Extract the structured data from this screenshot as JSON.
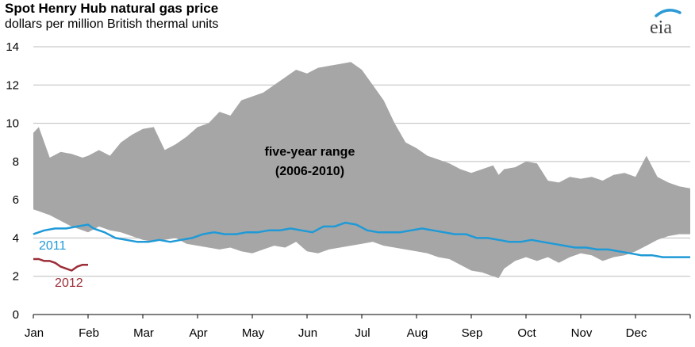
{
  "header": {
    "title": "Spot Henry Hub natural gas price",
    "subtitle": "dollars per million British thermal units",
    "logo_text": "eia"
  },
  "colors": {
    "band": "#a6a6a6",
    "s2011": "#1f9ad7",
    "s2012": "#9b2d37",
    "grid": "#bdbdbd",
    "logo_arc": "#2e9bd6"
  },
  "chart_data": {
    "type": "area",
    "ylim": [
      0,
      14
    ],
    "yticks": [
      0,
      2,
      4,
      6,
      8,
      10,
      12,
      14
    ],
    "grid": true,
    "xlim": [
      0,
      12
    ],
    "months": [
      "Jan",
      "Feb",
      "Mar",
      "Apr",
      "May",
      "Jun",
      "Jul",
      "Aug",
      "Sep",
      "Oct",
      "Nov",
      "Dec"
    ],
    "band_annotation": [
      "five-year range",
      "(2006-2010)"
    ],
    "range_band": {
      "x": [
        0.0,
        0.1,
        0.3,
        0.5,
        0.7,
        0.9,
        1.0,
        1.2,
        1.4,
        1.6,
        1.8,
        2.0,
        2.2,
        2.4,
        2.6,
        2.8,
        3.0,
        3.2,
        3.4,
        3.6,
        3.8,
        4.0,
        4.2,
        4.4,
        4.6,
        4.8,
        5.0,
        5.2,
        5.4,
        5.6,
        5.8,
        6.0,
        6.2,
        6.4,
        6.6,
        6.8,
        7.0,
        7.2,
        7.4,
        7.6,
        7.8,
        8.0,
        8.2,
        8.4,
        8.5,
        8.6,
        8.8,
        9.0,
        9.2,
        9.4,
        9.6,
        9.8,
        10.0,
        10.2,
        10.4,
        10.6,
        10.8,
        11.0,
        11.2,
        11.4,
        11.6,
        11.8,
        12.0
      ],
      "high": [
        9.5,
        9.8,
        8.2,
        8.5,
        8.4,
        8.2,
        8.3,
        8.6,
        8.3,
        9.0,
        9.4,
        9.7,
        9.8,
        8.6,
        8.9,
        9.3,
        9.8,
        10.0,
        10.6,
        10.4,
        11.2,
        11.4,
        11.6,
        12.0,
        12.4,
        12.8,
        12.6,
        12.9,
        13.0,
        13.1,
        13.2,
        12.8,
        12.0,
        11.2,
        10.0,
        9.0,
        8.7,
        8.3,
        8.1,
        7.9,
        7.6,
        7.4,
        7.6,
        7.8,
        7.3,
        7.6,
        7.7,
        8.0,
        7.9,
        7.0,
        6.9,
        7.2,
        7.1,
        7.2,
        7.0,
        7.3,
        7.4,
        7.2,
        8.3,
        7.2,
        6.9,
        6.7,
        6.6
      ],
      "low": [
        5.5,
        5.4,
        5.2,
        4.9,
        4.6,
        4.4,
        4.3,
        4.6,
        4.4,
        4.3,
        4.1,
        3.9,
        3.8,
        3.9,
        4.0,
        3.7,
        3.6,
        3.5,
        3.4,
        3.5,
        3.3,
        3.2,
        3.4,
        3.6,
        3.5,
        3.8,
        3.3,
        3.2,
        3.4,
        3.5,
        3.6,
        3.7,
        3.8,
        3.6,
        3.5,
        3.4,
        3.3,
        3.2,
        3.0,
        2.9,
        2.6,
        2.3,
        2.2,
        2.0,
        1.9,
        2.4,
        2.8,
        3.0,
        2.8,
        3.0,
        2.7,
        3.0,
        3.2,
        3.1,
        2.8,
        3.0,
        3.1,
        3.3,
        3.6,
        3.9,
        4.1,
        4.2,
        4.2
      ]
    },
    "series": [
      {
        "name": "2011",
        "x": [
          0.0,
          0.2,
          0.4,
          0.6,
          0.8,
          1.0,
          1.1,
          1.3,
          1.5,
          1.7,
          1.9,
          2.1,
          2.3,
          2.5,
          2.7,
          2.9,
          3.1,
          3.3,
          3.5,
          3.7,
          3.9,
          4.1,
          4.3,
          4.5,
          4.7,
          4.9,
          5.1,
          5.3,
          5.5,
          5.7,
          5.9,
          6.1,
          6.3,
          6.5,
          6.7,
          6.9,
          7.1,
          7.3,
          7.5,
          7.7,
          7.9,
          8.1,
          8.3,
          8.5,
          8.7,
          8.9,
          9.1,
          9.3,
          9.5,
          9.7,
          9.9,
          10.1,
          10.3,
          10.5,
          10.7,
          10.9,
          11.1,
          11.3,
          11.5,
          11.7,
          11.9,
          12.0
        ],
        "values": [
          4.2,
          4.4,
          4.5,
          4.5,
          4.6,
          4.7,
          4.5,
          4.3,
          4.0,
          3.9,
          3.8,
          3.8,
          3.9,
          3.8,
          3.9,
          4.0,
          4.2,
          4.3,
          4.2,
          4.2,
          4.3,
          4.3,
          4.4,
          4.4,
          4.5,
          4.4,
          4.3,
          4.6,
          4.6,
          4.8,
          4.7,
          4.4,
          4.3,
          4.3,
          4.3,
          4.4,
          4.5,
          4.4,
          4.3,
          4.2,
          4.2,
          4.0,
          4.0,
          3.9,
          3.8,
          3.8,
          3.9,
          3.8,
          3.7,
          3.6,
          3.5,
          3.5,
          3.4,
          3.4,
          3.3,
          3.2,
          3.1,
          3.1,
          3.0,
          3.0,
          3.0,
          3.0
        ]
      },
      {
        "name": "2012",
        "x": [
          0.0,
          0.1,
          0.2,
          0.3,
          0.4,
          0.5,
          0.6,
          0.7,
          0.8,
          0.9,
          1.0
        ],
        "values": [
          2.9,
          2.9,
          2.8,
          2.8,
          2.7,
          2.5,
          2.4,
          2.3,
          2.5,
          2.6,
          2.6
        ]
      }
    ]
  }
}
